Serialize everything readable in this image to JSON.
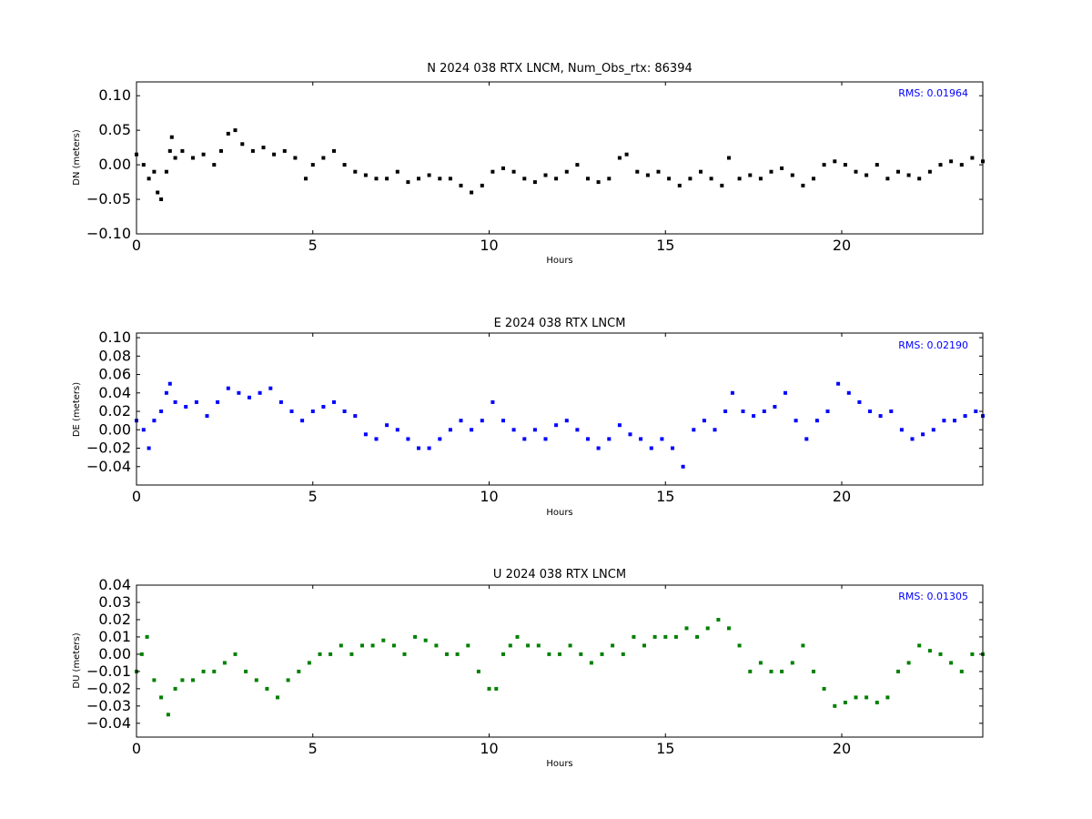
{
  "colors": {
    "n_series": "#000000",
    "e_series": "#0000ff",
    "u_series": "#008000",
    "rms_text": "#0000ff"
  },
  "chart_data": [
    {
      "type": "scatter",
      "title": "N 2024 038 RTX  LNCM, Num_Obs_rtx: 86394",
      "xlabel": "Hours",
      "ylabel": "DN (meters)",
      "xlim": [
        0,
        24
      ],
      "ylim": [
        -0.1,
        0.12
      ],
      "xticks": [
        0,
        5,
        10,
        15,
        20
      ],
      "xtick_labels": [
        "0",
        "5",
        "10",
        "15",
        "20"
      ],
      "yticks": [
        -0.1,
        -0.05,
        0.0,
        0.05,
        0.1
      ],
      "ytick_labels": [
        "−0.10",
        "−0.05",
        "0.00",
        "0.05",
        "0.10"
      ],
      "annotation": "RMS:  0.01964",
      "series": [
        {
          "color_key": "n_series",
          "x": [
            0,
            0.2,
            0.35,
            0.5,
            0.6,
            0.7,
            0.85,
            0.95,
            1.0,
            1.1,
            1.3,
            1.6,
            1.9,
            2.2,
            2.4,
            2.6,
            2.8,
            3.0,
            3.3,
            3.6,
            3.9,
            4.2,
            4.5,
            4.8,
            5.0,
            5.3,
            5.6,
            5.9,
            6.2,
            6.5,
            6.8,
            7.1,
            7.4,
            7.7,
            8.0,
            8.3,
            8.6,
            8.9,
            9.2,
            9.5,
            9.8,
            10.1,
            10.4,
            10.7,
            11.0,
            11.3,
            11.6,
            11.9,
            12.2,
            12.5,
            12.8,
            13.1,
            13.4,
            13.7,
            13.9,
            14.2,
            14.5,
            14.8,
            15.1,
            15.4,
            15.7,
            16.0,
            16.3,
            16.6,
            16.8,
            17.1,
            17.4,
            17.7,
            18.0,
            18.3,
            18.6,
            18.9,
            19.2,
            19.5,
            19.8,
            20.1,
            20.4,
            20.7,
            21.0,
            21.3,
            21.6,
            21.9,
            22.2,
            22.5,
            22.8,
            23.1,
            23.4,
            23.7,
            24.0
          ],
          "y": [
            0.015,
            0.0,
            -0.02,
            -0.01,
            -0.04,
            -0.05,
            -0.01,
            0.02,
            0.04,
            0.01,
            0.02,
            0.01,
            0.015,
            0.0,
            0.02,
            0.045,
            0.05,
            0.03,
            0.02,
            0.025,
            0.015,
            0.02,
            0.01,
            -0.02,
            0.0,
            0.01,
            0.02,
            0.0,
            -0.01,
            -0.015,
            -0.02,
            -0.02,
            -0.01,
            -0.025,
            -0.02,
            -0.015,
            -0.02,
            -0.02,
            -0.03,
            -0.04,
            -0.03,
            -0.01,
            -0.005,
            -0.01,
            -0.02,
            -0.025,
            -0.015,
            -0.02,
            -0.01,
            0.0,
            -0.02,
            -0.025,
            -0.02,
            0.01,
            0.015,
            -0.01,
            -0.015,
            -0.01,
            -0.02,
            -0.03,
            -0.02,
            -0.01,
            -0.02,
            -0.03,
            0.01,
            -0.02,
            -0.015,
            -0.02,
            -0.01,
            -0.005,
            -0.015,
            -0.03,
            -0.02,
            0.0,
            0.005,
            0.0,
            -0.01,
            -0.015,
            0.0,
            -0.02,
            -0.01,
            -0.015,
            -0.02,
            -0.01,
            0.0,
            0.005,
            0.0,
            0.01,
            0.005
          ]
        }
      ]
    },
    {
      "type": "scatter",
      "title": "E 2024 038 RTX  LNCM",
      "xlabel": "Hours",
      "ylabel": "DE (meters)",
      "xlim": [
        0,
        24
      ],
      "ylim": [
        -0.06,
        0.105
      ],
      "xticks": [
        0,
        5,
        10,
        15,
        20
      ],
      "xtick_labels": [
        "0",
        "5",
        "10",
        "15",
        "20"
      ],
      "yticks": [
        -0.04,
        -0.02,
        0.0,
        0.02,
        0.04,
        0.06,
        0.08,
        0.1
      ],
      "ytick_labels": [
        "−0.04",
        "−0.02",
        "0.00",
        "0.02",
        "0.04",
        "0.06",
        "0.08",
        "0.10"
      ],
      "annotation": "RMS:  0.02190",
      "series": [
        {
          "color_key": "e_series",
          "x": [
            0,
            0.2,
            0.35,
            0.5,
            0.7,
            0.85,
            0.95,
            1.1,
            1.4,
            1.7,
            2.0,
            2.3,
            2.6,
            2.9,
            3.2,
            3.5,
            3.8,
            4.1,
            4.4,
            4.7,
            5.0,
            5.3,
            5.6,
            5.9,
            6.2,
            6.5,
            6.8,
            7.1,
            7.4,
            7.7,
            8.0,
            8.3,
            8.6,
            8.9,
            9.2,
            9.5,
            9.8,
            10.1,
            10.4,
            10.7,
            11.0,
            11.3,
            11.6,
            11.9,
            12.2,
            12.5,
            12.8,
            13.1,
            13.4,
            13.7,
            14.0,
            14.3,
            14.6,
            14.9,
            15.2,
            15.5,
            15.8,
            16.1,
            16.4,
            16.7,
            16.9,
            17.2,
            17.5,
            17.8,
            18.1,
            18.4,
            18.7,
            19.0,
            19.3,
            19.6,
            19.9,
            20.2,
            20.5,
            20.8,
            21.1,
            21.4,
            21.7,
            22.0,
            22.3,
            22.6,
            22.9,
            23.2,
            23.5,
            23.8,
            24.0
          ],
          "y": [
            0.01,
            0.0,
            -0.02,
            0.01,
            0.02,
            0.04,
            0.05,
            0.03,
            0.025,
            0.03,
            0.015,
            0.03,
            0.045,
            0.04,
            0.035,
            0.04,
            0.045,
            0.03,
            0.02,
            0.01,
            0.02,
            0.025,
            0.03,
            0.02,
            0.015,
            -0.005,
            -0.01,
            0.005,
            0.0,
            -0.01,
            -0.02,
            -0.02,
            -0.01,
            0.0,
            0.01,
            0.0,
            0.01,
            0.03,
            0.01,
            0.0,
            -0.01,
            0.0,
            -0.01,
            0.005,
            0.01,
            0.0,
            -0.01,
            -0.02,
            -0.01,
            0.005,
            -0.005,
            -0.01,
            -0.02,
            -0.01,
            -0.02,
            -0.04,
            0.0,
            0.01,
            0.0,
            0.02,
            0.04,
            0.02,
            0.015,
            0.02,
            0.025,
            0.04,
            0.01,
            -0.01,
            0.01,
            0.02,
            0.05,
            0.04,
            0.03,
            0.02,
            0.015,
            0.02,
            0.0,
            -0.01,
            -0.005,
            0.0,
            0.01,
            0.01,
            0.015,
            0.02,
            0.015
          ]
        }
      ]
    },
    {
      "type": "scatter",
      "title": "U 2024 038 RTX  LNCM",
      "xlabel": "Hours",
      "ylabel": "DU (meters)",
      "xlim": [
        0,
        24
      ],
      "ylim": [
        -0.048,
        0.04
      ],
      "xticks": [
        0,
        5,
        10,
        15,
        20
      ],
      "xtick_labels": [
        "0",
        "5",
        "10",
        "15",
        "20"
      ],
      "yticks": [
        -0.04,
        -0.03,
        -0.02,
        -0.01,
        0.0,
        0.01,
        0.02,
        0.03,
        0.04
      ],
      "ytick_labels": [
        "−0.04",
        "−0.03",
        "−0.02",
        "−0.01",
        "0.00",
        "0.01",
        "0.02",
        "0.03",
        "0.04"
      ],
      "annotation": "RMS:  0.01305",
      "series": [
        {
          "color_key": "u_series",
          "x": [
            0,
            0.15,
            0.3,
            0.5,
            0.7,
            0.9,
            1.1,
            1.3,
            1.6,
            1.9,
            2.2,
            2.5,
            2.8,
            3.1,
            3.4,
            3.7,
            4.0,
            4.3,
            4.6,
            4.9,
            5.2,
            5.5,
            5.8,
            6.1,
            6.4,
            6.7,
            7.0,
            7.3,
            7.6,
            7.9,
            8.2,
            8.5,
            8.8,
            9.1,
            9.4,
            9.7,
            10.0,
            10.2,
            10.4,
            10.6,
            10.8,
            11.1,
            11.4,
            11.7,
            12.0,
            12.3,
            12.6,
            12.9,
            13.2,
            13.5,
            13.8,
            14.1,
            14.4,
            14.7,
            15.0,
            15.3,
            15.6,
            15.9,
            16.2,
            16.5,
            16.8,
            17.1,
            17.4,
            17.7,
            18.0,
            18.3,
            18.6,
            18.9,
            19.2,
            19.5,
            19.8,
            20.1,
            20.4,
            20.7,
            21.0,
            21.3,
            21.6,
            21.9,
            22.2,
            22.5,
            22.8,
            23.1,
            23.4,
            23.7,
            24.0
          ],
          "y": [
            -0.01,
            0.0,
            0.01,
            -0.015,
            -0.025,
            -0.035,
            -0.02,
            -0.015,
            -0.015,
            -0.01,
            -0.01,
            -0.005,
            0.0,
            -0.01,
            -0.015,
            -0.02,
            -0.025,
            -0.015,
            -0.01,
            -0.005,
            0.0,
            0.0,
            0.005,
            0.0,
            0.005,
            0.005,
            0.008,
            0.005,
            0.0,
            0.01,
            0.008,
            0.005,
            0.0,
            0.0,
            0.005,
            -0.01,
            -0.02,
            -0.02,
            0.0,
            0.005,
            0.01,
            0.005,
            0.005,
            0.0,
            0.0,
            0.005,
            0.0,
            -0.005,
            0.0,
            0.005,
            0.0,
            0.01,
            0.005,
            0.01,
            0.01,
            0.01,
            0.015,
            0.01,
            0.015,
            0.02,
            0.015,
            0.005,
            -0.01,
            -0.005,
            -0.01,
            -0.01,
            -0.005,
            0.005,
            -0.01,
            -0.02,
            -0.03,
            -0.028,
            -0.025,
            -0.025,
            -0.028,
            -0.025,
            -0.01,
            -0.005,
            0.005,
            0.002,
            0.0,
            -0.005,
            -0.01,
            0.0,
            0.0
          ]
        }
      ]
    }
  ]
}
